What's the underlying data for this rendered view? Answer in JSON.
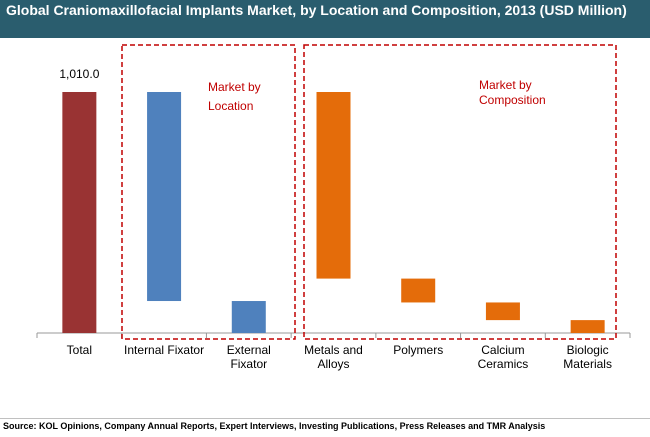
{
  "title": "Global Craniomaxillofacial Implants Market, by Location and Composition, 2013 (USD Million)",
  "source": "Source: KOL Opinions, Company Annual Reports, Expert Interviews, Investing Publications, Press Releases and TMR Analysis",
  "colors": {
    "title_bg": "#2a5d6e",
    "total": "#993333",
    "location": "#4f81bd",
    "composition": "#e46c0a",
    "annotation": "#c00000"
  },
  "chart_data": {
    "type": "bar",
    "subtype": "waterfall",
    "title": "Global Craniomaxillofacial Implants Market, by Location and Composition, 2013 (USD Million)",
    "categories": [
      [
        "Total"
      ],
      [
        "Internal Fixator"
      ],
      [
        "External",
        "Fixator"
      ],
      [
        "Metals and",
        "Alloys"
      ],
      [
        "Polymers"
      ],
      [
        "Calcium",
        "Ceramics"
      ],
      [
        "Biologic",
        "Materials"
      ]
    ],
    "bars": [
      {
        "group": "total",
        "start": 0,
        "end": 1010.0
      },
      {
        "group": "location",
        "start": 134,
        "end": 1010.0
      },
      {
        "group": "location",
        "start": 0,
        "end": 134
      },
      {
        "group": "composition",
        "start": 228,
        "end": 1010.0
      },
      {
        "group": "composition",
        "start": 128,
        "end": 228
      },
      {
        "group": "composition",
        "start": 54,
        "end": 128
      },
      {
        "group": "composition",
        "start": 0,
        "end": 54
      }
    ],
    "data_labels": [
      "1,010.0"
    ],
    "ylim": [
      0,
      1100
    ],
    "annotations": [
      {
        "lines": [
          "Market by",
          "Location"
        ]
      },
      {
        "lines": [
          "Market by",
          "Composition"
        ]
      }
    ]
  }
}
